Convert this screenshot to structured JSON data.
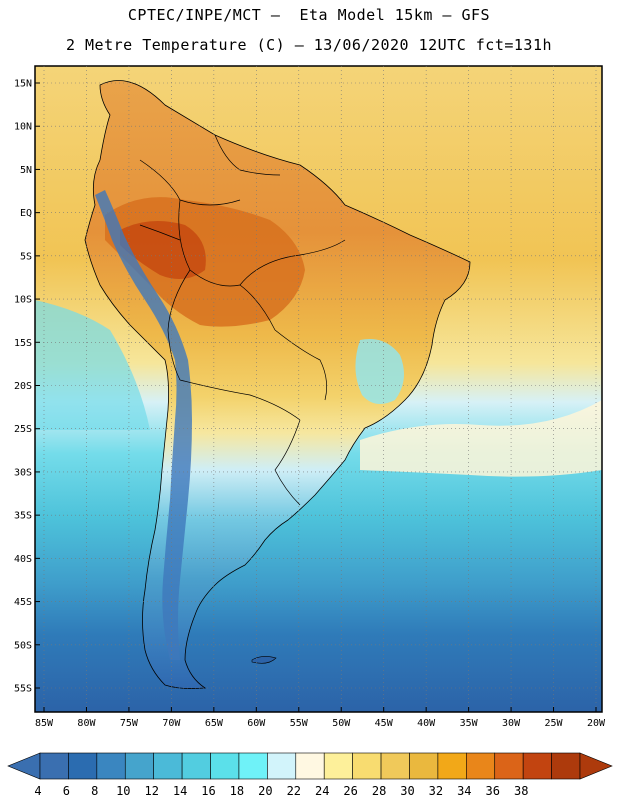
{
  "header": {
    "line1": "CPTEC/INPE/MCT –  Eta Model 15km – GFS",
    "line2": "2 Metre Temperature (C) – 13/06/2020 12UTC fct=131h"
  },
  "map": {
    "region": "South America",
    "lat_labels": [
      "15N",
      "10N",
      "5N",
      "EQ",
      "5S",
      "10S",
      "15S",
      "20S",
      "25S",
      "30S",
      "35S",
      "40S",
      "45S",
      "50S",
      "55S"
    ],
    "lon_labels": [
      "85W",
      "80W",
      "75W",
      "70W",
      "65W",
      "60W",
      "55W",
      "50W",
      "45W",
      "40W",
      "35W",
      "30W",
      "25W",
      "20W"
    ]
  },
  "colorbar": {
    "levels": [
      "4",
      "6",
      "8",
      "10",
      "12",
      "14",
      "16",
      "18",
      "20",
      "22",
      "24",
      "26",
      "28",
      "30",
      "32",
      "34",
      "36",
      "38"
    ],
    "colors": [
      "#3a6fb0",
      "#2b6cb0",
      "#3a86c0",
      "#45a4cc",
      "#4bbad8",
      "#52cde0",
      "#5be0ea",
      "#6ff2f8",
      "#d2f4fb",
      "#fff8e2",
      "#fdf09a",
      "#f8dc70",
      "#f0c95a",
      "#eab83e",
      "#f2a818",
      "#e9861a",
      "#db6418",
      "#c24410",
      "#ad3a0c"
    ],
    "under_color": "#3a6fb0",
    "over_color": "#ad3a0c"
  },
  "colors": {
    "ocean_north": "#f2d27a",
    "ocean_south": "#3a6fb0",
    "land_hot": "#d9741f",
    "land_warm": "#eab83e",
    "andes_cold": "#4a7fc0",
    "border": "#000000"
  }
}
